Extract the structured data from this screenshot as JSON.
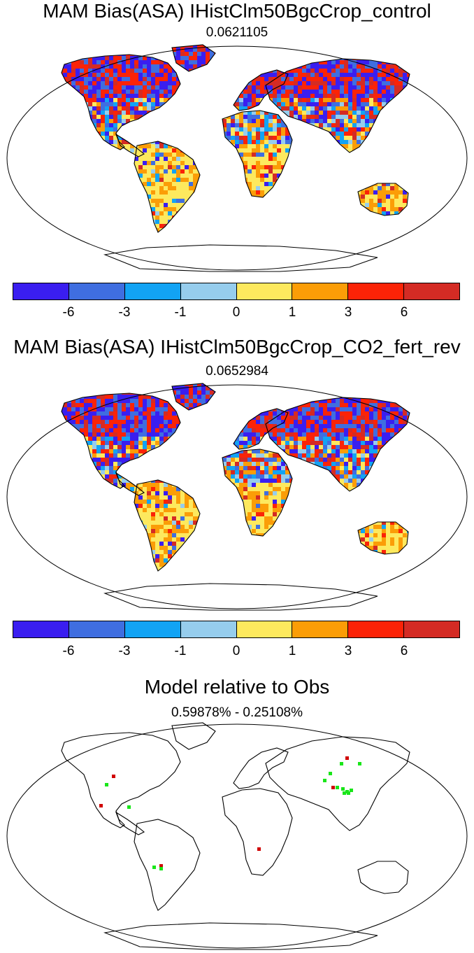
{
  "panel1": {
    "title": "MAM Bias(ASA) IHistClm50BgcCrop_control",
    "value": "0.0621105"
  },
  "panel2": {
    "title": "MAM Bias(ASA) IHistClm50BgcCrop_CO2_fert_rev",
    "value": "0.0652984"
  },
  "panel3": {
    "title": "Model relative to Obs",
    "subtitle": "0.59878% - 0.25108%"
  },
  "colorbar": {
    "colors": [
      "#3a1ef0",
      "#3f6ee0",
      "#12a3f4",
      "#96cded",
      "#fde95e",
      "#fb9d07",
      "#fb2307",
      "#d42b24"
    ],
    "tick_labels": [
      "-6",
      "-3",
      "-1",
      "0",
      "1",
      "3",
      "6"
    ]
  },
  "relative_colors": {
    "better": "#19e619",
    "worse": "#d00000"
  }
}
